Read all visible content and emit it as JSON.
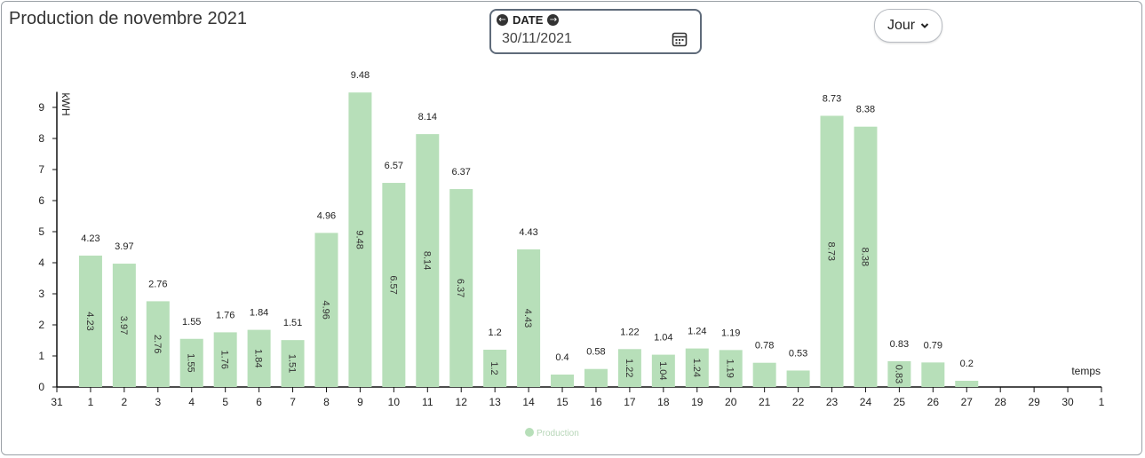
{
  "header": {
    "title": "Production de novembre 2021"
  },
  "date_picker": {
    "label": "DATE",
    "value": "30/11/2021",
    "prev_icon": "arrow-left-circle-icon",
    "next_icon": "arrow-right-circle-icon",
    "calendar_icon": "calendar-icon"
  },
  "period_select": {
    "label": "Jour",
    "icon": "chevron-down-icon"
  },
  "chart_data": {
    "type": "bar",
    "title": "",
    "xlabel": "temps",
    "ylabel": "kWH",
    "ylim": [
      0,
      9.5
    ],
    "y_ticks": [
      0,
      1,
      2,
      3,
      4,
      5,
      6,
      7,
      8,
      9
    ],
    "x_ticks": [
      "31",
      "1",
      "2",
      "3",
      "4",
      "5",
      "6",
      "7",
      "8",
      "9",
      "10",
      "11",
      "12",
      "13",
      "14",
      "15",
      "16",
      "17",
      "18",
      "19",
      "20",
      "21",
      "22",
      "23",
      "24",
      "25",
      "26",
      "27",
      "28",
      "29",
      "30",
      "1"
    ],
    "categories": [
      "1",
      "2",
      "3",
      "4",
      "5",
      "6",
      "7",
      "8",
      "9",
      "10",
      "11",
      "12",
      "13",
      "14",
      "15",
      "16",
      "17",
      "18",
      "19",
      "20",
      "21",
      "22",
      "23",
      "24",
      "25",
      "26",
      "27",
      "28",
      "29",
      "30"
    ],
    "series": [
      {
        "name": "Production",
        "color": "#b7dfb9",
        "values": [
          4.23,
          3.97,
          2.76,
          1.55,
          1.76,
          1.84,
          1.51,
          4.96,
          9.48,
          6.57,
          8.14,
          6.37,
          1.2,
          4.43,
          0.4,
          0.58,
          1.22,
          1.04,
          1.24,
          1.19,
          0.78,
          0.53,
          8.73,
          8.38,
          0.83,
          0.79,
          0.2,
          null,
          null,
          null
        ],
        "labels": [
          "4.23",
          "3.97",
          "2.76",
          "1.55",
          "1.76",
          "1.84",
          "1.51",
          "4.96",
          "9.48",
          "6.57",
          "8.14",
          "6.37",
          "1.2",
          "4.43",
          "0.4",
          "0.58",
          "1.22",
          "1.04",
          "1.24",
          "1.19",
          "0.78",
          "0.53",
          "8.73",
          "8.38",
          "0.83",
          "0.79",
          "0.2",
          "",
          "",
          ""
        ]
      }
    ],
    "legend": "bottom-center",
    "grid": false
  }
}
